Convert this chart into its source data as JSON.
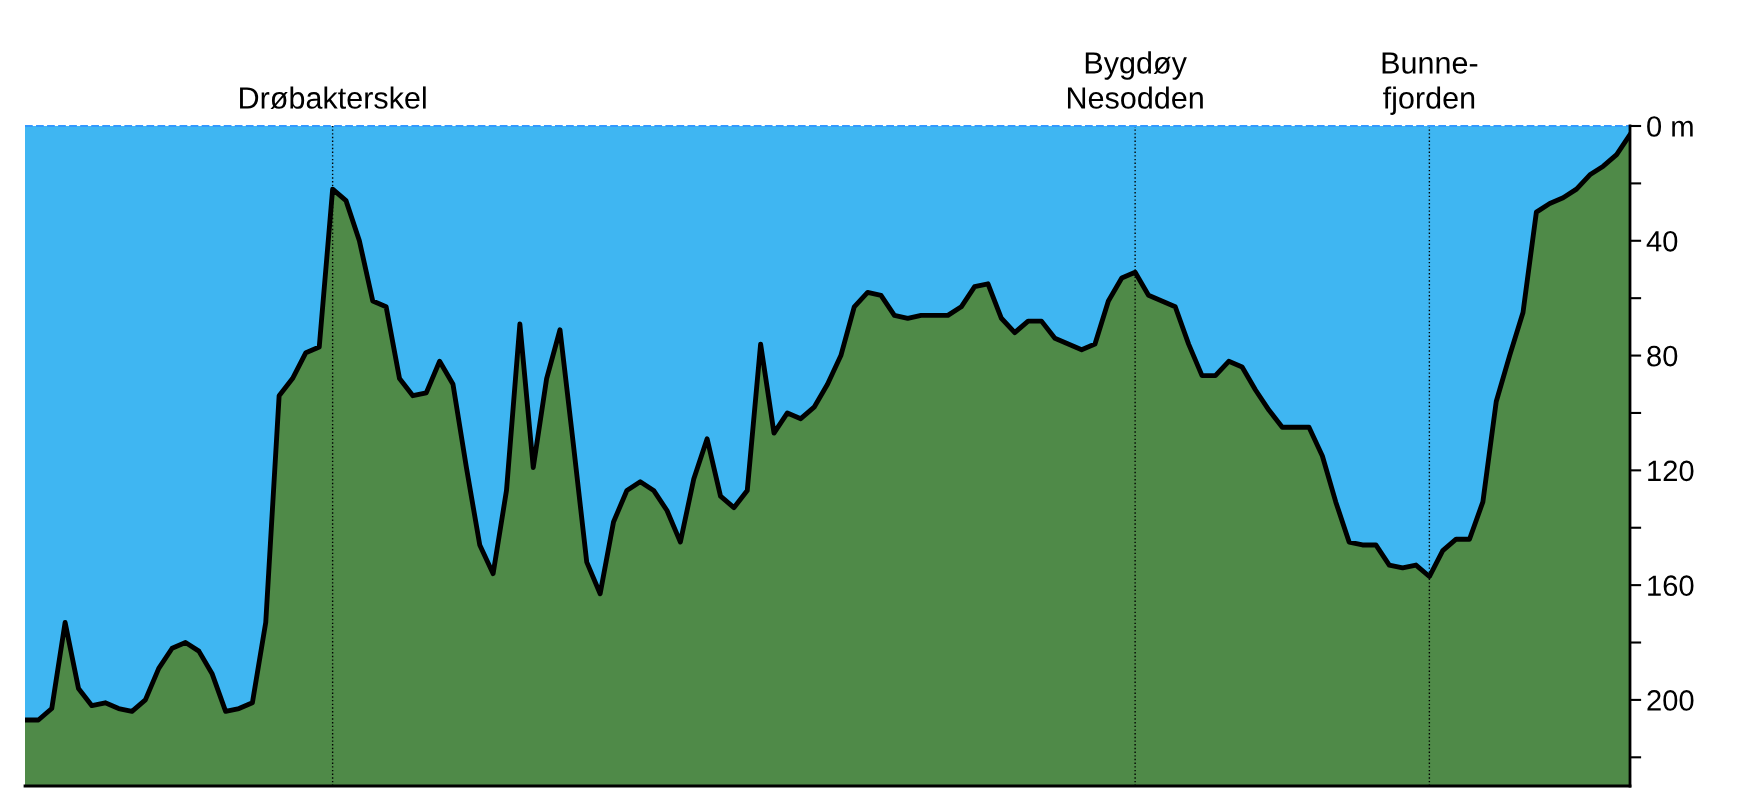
{
  "chart_data": {
    "type": "area",
    "categories": [
      null,
      null,
      null,
      null,
      null,
      null,
      null,
      null,
      null,
      null,
      null,
      null,
      null,
      null,
      null,
      null,
      null,
      null,
      null,
      null,
      null,
      null,
      null,
      "Drøbakterskel",
      null,
      null,
      null,
      null,
      null,
      null,
      null,
      null,
      null,
      null,
      null,
      null,
      null,
      null,
      null,
      null,
      null,
      null,
      null,
      null,
      null,
      null,
      null,
      null,
      null,
      null,
      null,
      null,
      null,
      null,
      null,
      null,
      null,
      null,
      null,
      null,
      null,
      null,
      null,
      null,
      null,
      null,
      null,
      null,
      null,
      null,
      null,
      null,
      null,
      null,
      null,
      null,
      null,
      null,
      null,
      null,
      null,
      null,
      null,
      "Bygdøy\nNesodden",
      null,
      null,
      null,
      null,
      null,
      null,
      null,
      null,
      null,
      null,
      null,
      null,
      null,
      null,
      null,
      null,
      null,
      null,
      null,
      null,
      null,
      "Bunne-\nfjorden",
      null,
      null,
      null,
      null,
      null,
      null,
      null,
      null,
      null,
      null,
      null,
      null,
      null,
      null,
      null
    ],
    "series": [
      {
        "color": "#3fb6f2",
        "values": [
          207,
          207,
          203,
          173,
          196,
          202,
          201,
          203,
          204,
          200,
          189,
          182,
          180,
          183,
          191,
          204,
          203,
          201,
          173,
          94,
          88,
          79,
          77,
          22,
          26,
          40,
          61,
          63,
          88,
          94,
          93,
          82,
          90,
          119,
          146,
          156,
          127,
          69,
          119,
          88,
          71,
          111,
          152,
          163,
          138,
          127,
          124,
          127,
          134,
          145,
          123,
          109,
          129,
          133,
          127,
          76,
          107,
          100,
          102,
          98,
          90,
          80,
          63,
          58,
          59,
          66,
          67,
          66,
          66,
          66,
          63,
          56,
          55,
          67,
          72,
          68,
          68,
          74,
          76,
          78,
          76,
          61,
          53,
          51,
          59,
          61,
          63,
          76,
          87,
          87,
          82,
          84,
          92,
          99,
          105,
          105,
          105,
          115,
          131,
          145,
          146,
          146,
          153,
          154,
          153,
          157,
          148,
          144,
          144,
          131,
          96,
          80,
          65,
          30,
          27,
          25,
          22,
          17,
          14,
          10,
          3
        ]
      }
    ],
    "ylim": [
      230,
      0
    ],
    "yticks": [
      {
        "value": 0,
        "label": "0 m"
      },
      {
        "value": 20,
        "label": null
      },
      40,
      {
        "value": 60,
        "label": null
      },
      80,
      {
        "value": 100,
        "label": null
      },
      120,
      {
        "value": 140,
        "label": null
      },
      160,
      {
        "value": 180,
        "label": null
      },
      200,
      {
        "value": 220,
        "label": null
      }
    ],
    "grid": false,
    "legend": false,
    "ref_lines": [
      {
        "axis": "x",
        "value": "Drøbakterskel",
        "color": "#000000",
        "line_style": "dotted"
      },
      {
        "axis": "x",
        "value": "Bygdøy\nNesodden",
        "color": "#000000",
        "line_style": "dotted"
      },
      {
        "axis": "x",
        "value": "Bunne-\nfjorden",
        "color": "#000000",
        "line_style": "dotted"
      },
      {
        "axis": "y",
        "value": 0,
        "color": "#3399ff",
        "line_style": "dashed"
      }
    ]
  }
}
